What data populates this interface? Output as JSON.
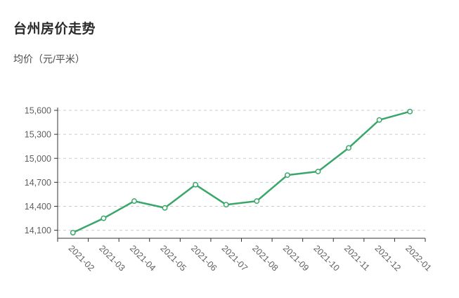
{
  "header": {
    "title": "台州房价走势",
    "subtitle": "均价（元/平米）"
  },
  "chart_data": {
    "type": "line",
    "title": "台州房价走势",
    "ylabel": "均价（元/平米）",
    "xlabel": "",
    "categories": [
      "2021-02",
      "2021-03",
      "2021-04",
      "2021-05",
      "2021-06",
      "2021-07",
      "2021-08",
      "2021-09",
      "2021-10",
      "2021-11",
      "2021-12",
      "2022-01"
    ],
    "series": [
      {
        "name": "均价",
        "values": [
          14070,
          14250,
          14465,
          14380,
          14670,
          14420,
          14465,
          14790,
          14835,
          15130,
          15480,
          15585
        ]
      }
    ],
    "ylim": [
      14000,
      15600
    ],
    "y_ticks": [
      14100,
      14400,
      14700,
      15000,
      15300,
      15600
    ],
    "grid": true,
    "grid_style": "dashed",
    "legend": "none",
    "x_label_rotation": 45,
    "marker": "open-circle",
    "colors": {
      "line": "#3aa76a",
      "marker_fill": "#ffffff",
      "axis": "#333333",
      "gridline": "#cccccc",
      "tick_label": "#5f5f5f",
      "title": "#2b2b2b",
      "subtitle": "#4c4c4c",
      "background": "#ffffff"
    }
  }
}
